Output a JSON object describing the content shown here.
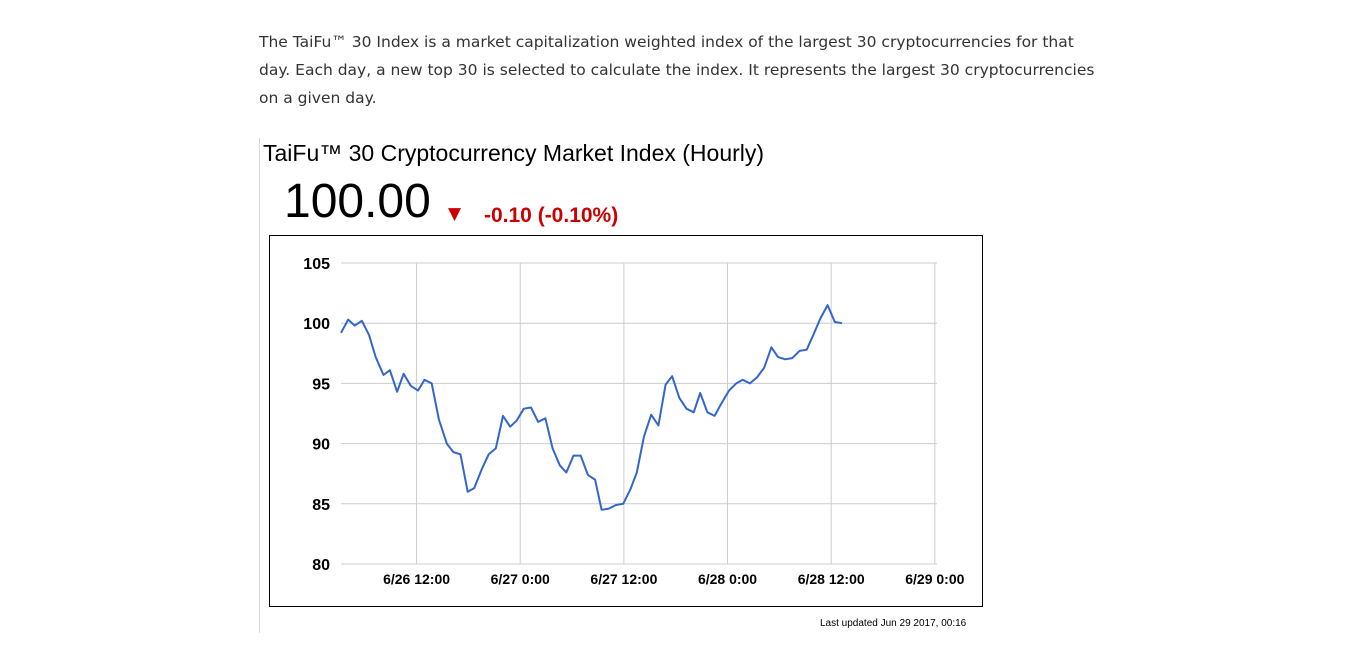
{
  "intro_text": "The TaiFu™ 30 Index is a market capitalization weighted index of the largest 30 cryptocurrencies for that day. Each day, a new top 30 is selected to calculate the index. It represents the largest 30 cryptocurrencies on a given day.",
  "widget": {
    "title": "TaiFu™ 30 Cryptocurrency Market Index (Hourly)",
    "value": "100.00",
    "change_arrow": "▼",
    "change": "-0.10 (-0.10%)",
    "change_color": "#cc0000",
    "last_updated": "Last updated Jun 29 2017, 00:16"
  },
  "chart_data": {
    "type": "line",
    "title": "TaiFu™ 30 Cryptocurrency Market Index (Hourly)",
    "xlabel": "",
    "ylabel": "",
    "x_unit": "hours",
    "xlim": [
      "2017-06-26 03:15",
      "2017-06-29 00:15"
    ],
    "ylim": [
      80,
      105
    ],
    "yticks": [
      80,
      85,
      90,
      95,
      100,
      105
    ],
    "xticks": [
      {
        "label": "6/26 12:00",
        "t": "2017-06-26 12:00"
      },
      {
        "label": "6/27 0:00",
        "t": "2017-06-27 00:00"
      },
      {
        "label": "6/27 12:00",
        "t": "2017-06-27 12:00"
      },
      {
        "label": "6/28 0:00",
        "t": "2017-06-28 00:00"
      },
      {
        "label": "6/28 12:00",
        "t": "2017-06-28 12:00"
      },
      {
        "label": "6/29 0:00",
        "t": "2017-06-29 00:00"
      }
    ],
    "grid": true,
    "legend": "none",
    "line_color": "#3366cc",
    "series": [
      {
        "points": [
          [
            "2017-06-26 03:15",
            99.2
          ],
          [
            "2017-06-26 04:05",
            100.3
          ],
          [
            "2017-06-26 04:50",
            99.8
          ],
          [
            "2017-06-26 05:40",
            100.2
          ],
          [
            "2017-06-26 06:30",
            99.0
          ],
          [
            "2017-06-26 07:15",
            97.2
          ],
          [
            "2017-06-26 08:10",
            95.7
          ],
          [
            "2017-06-26 08:55",
            96.1
          ],
          [
            "2017-06-26 09:45",
            94.3
          ],
          [
            "2017-06-26 10:30",
            95.8
          ],
          [
            "2017-06-26 11:20",
            94.8
          ],
          [
            "2017-06-26 12:10",
            94.4
          ],
          [
            "2017-06-26 12:55",
            95.3
          ],
          [
            "2017-06-26 13:45",
            95.0
          ],
          [
            "2017-06-26 14:35",
            92.0
          ],
          [
            "2017-06-26 15:30",
            90.0
          ],
          [
            "2017-06-26 16:15",
            89.3
          ],
          [
            "2017-06-26 17:05",
            89.1
          ],
          [
            "2017-06-26 17:55",
            86.0
          ],
          [
            "2017-06-26 18:40",
            86.3
          ],
          [
            "2017-06-26 19:30",
            87.8
          ],
          [
            "2017-06-26 20:20",
            89.1
          ],
          [
            "2017-06-26 21:10",
            89.6
          ],
          [
            "2017-06-26 22:00",
            92.3
          ],
          [
            "2017-06-26 22:50",
            91.4
          ],
          [
            "2017-06-26 23:35",
            91.9
          ],
          [
            "2017-06-27 00:25",
            92.9
          ],
          [
            "2017-06-27 01:15",
            93.0
          ],
          [
            "2017-06-27 02:05",
            91.8
          ],
          [
            "2017-06-27 02:55",
            92.1
          ],
          [
            "2017-06-27 03:45",
            89.6
          ],
          [
            "2017-06-27 04:35",
            88.2
          ],
          [
            "2017-06-27 05:20",
            87.6
          ],
          [
            "2017-06-27 06:10",
            89.0
          ],
          [
            "2017-06-27 07:00",
            89.0
          ],
          [
            "2017-06-27 07:50",
            87.4
          ],
          [
            "2017-06-27 08:40",
            87.0
          ],
          [
            "2017-06-27 09:25",
            84.5
          ],
          [
            "2017-06-27 10:15",
            84.6
          ],
          [
            "2017-06-27 11:05",
            84.9
          ],
          [
            "2017-06-27 11:55",
            85.0
          ],
          [
            "2017-06-27 12:45",
            86.2
          ],
          [
            "2017-06-27 13:30",
            87.6
          ],
          [
            "2017-06-27 14:20",
            90.6
          ],
          [
            "2017-06-27 15:10",
            92.4
          ],
          [
            "2017-06-27 16:00",
            91.5
          ],
          [
            "2017-06-27 16:50",
            94.9
          ],
          [
            "2017-06-27 17:35",
            95.6
          ],
          [
            "2017-06-27 18:25",
            93.8
          ],
          [
            "2017-06-27 19:15",
            92.9
          ],
          [
            "2017-06-27 20:05",
            92.6
          ],
          [
            "2017-06-27 20:50",
            94.2
          ],
          [
            "2017-06-27 21:40",
            92.6
          ],
          [
            "2017-06-27 22:30",
            92.3
          ],
          [
            "2017-06-27 23:20",
            93.4
          ],
          [
            "2017-06-28 00:10",
            94.4
          ],
          [
            "2017-06-28 01:00",
            95.0
          ],
          [
            "2017-06-28 01:45",
            95.3
          ],
          [
            "2017-06-28 02:35",
            95.0
          ],
          [
            "2017-06-28 03:25",
            95.5
          ],
          [
            "2017-06-28 04:15",
            96.3
          ],
          [
            "2017-06-28 05:05",
            98.0
          ],
          [
            "2017-06-28 05:50",
            97.2
          ],
          [
            "2017-06-28 06:40",
            97.0
          ],
          [
            "2017-06-28 07:30",
            97.1
          ],
          [
            "2017-06-28 08:20",
            97.7
          ],
          [
            "2017-06-28 09:10",
            97.8
          ],
          [
            "2017-06-28 09:55",
            99.0
          ],
          [
            "2017-06-28 10:45",
            100.4
          ],
          [
            "2017-06-28 11:35",
            101.5
          ],
          [
            "2017-06-28 12:25",
            100.1
          ],
          [
            "2017-06-28 13:15",
            100.0
          ]
        ]
      }
    ]
  }
}
